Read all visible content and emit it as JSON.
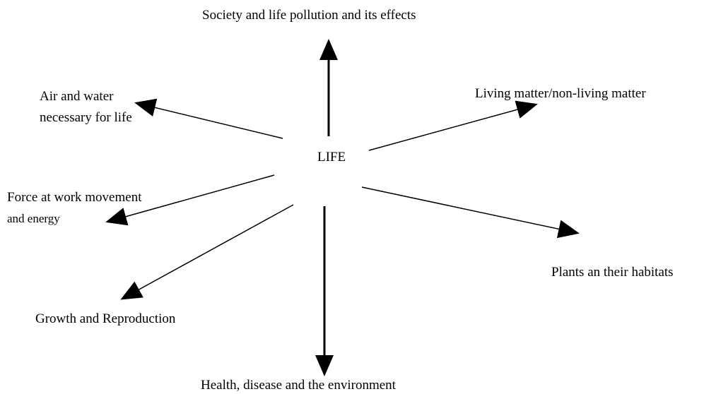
{
  "center": {
    "label": "LIFE"
  },
  "nodes": [
    {
      "label": "Society and life pollution and its effects"
    },
    {
      "label": "Living matter/non-living matter"
    },
    {
      "label": "Plants an their habitats"
    },
    {
      "label": "Health, disease and the environment"
    },
    {
      "label": "Growth and Reproduction"
    },
    {
      "label": "Force at work movement"
    },
    {
      "label": "and energy"
    },
    {
      "label": "Air and water"
    },
    {
      "label": "necessary for life"
    }
  ]
}
